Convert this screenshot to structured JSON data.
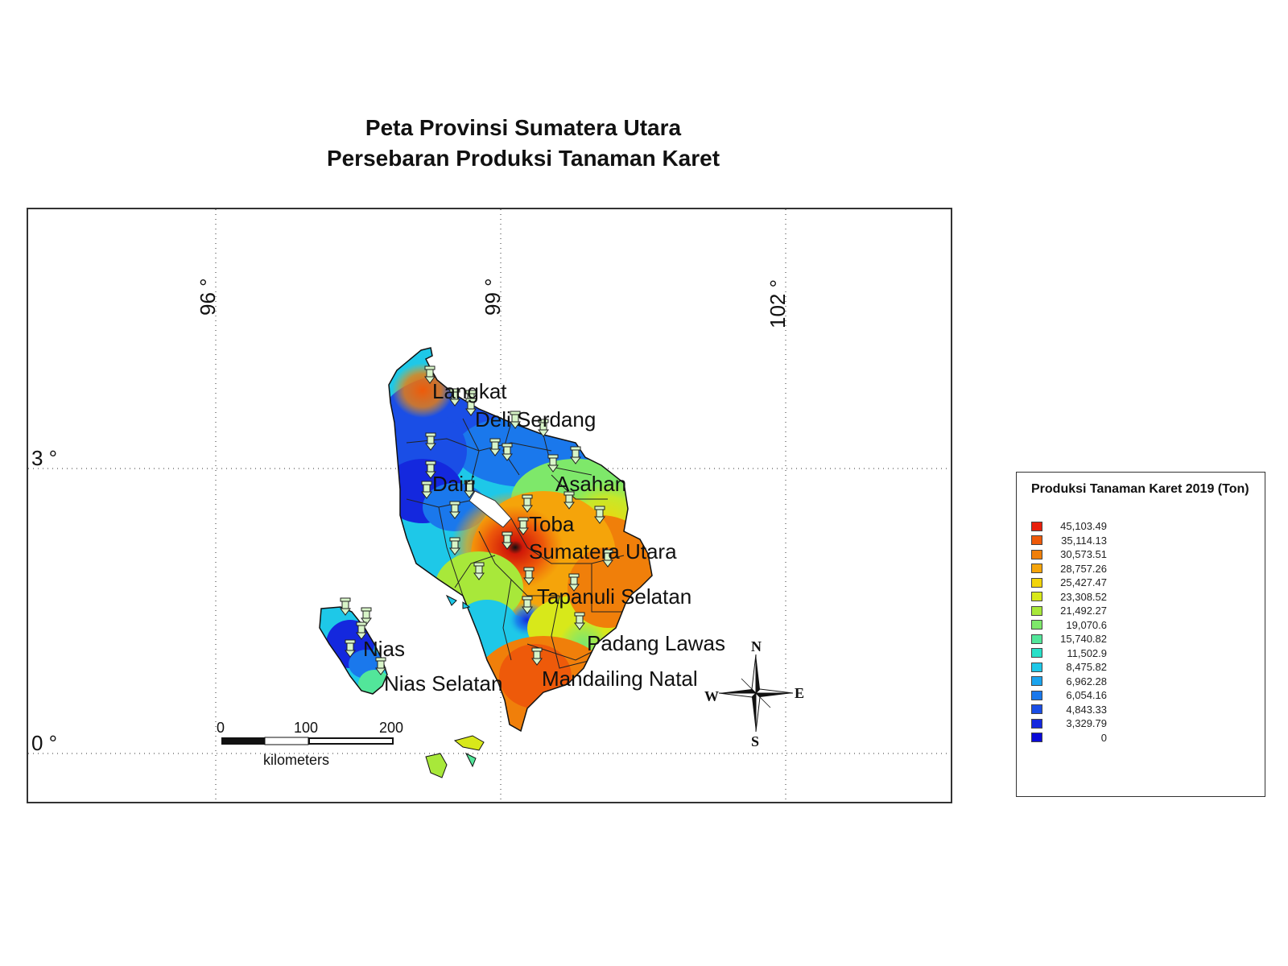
{
  "title": {
    "line1": "Peta Provinsi Sumatera Utara",
    "line2": "Persebaran Produksi Tanaman Karet"
  },
  "grid": {
    "lon_labels": [
      "96 °",
      "99 °",
      "102 °"
    ],
    "lat_labels": [
      "3 °",
      "0 °"
    ]
  },
  "regions": [
    "Langkat",
    "Deli Serdang",
    "Dairi",
    "Asahan",
    "Toba",
    "Sumatera Utara",
    "Tapanuli Selatan",
    "Padang Lawas",
    "Nias",
    "Nias Selatan",
    "Mandailing Natal"
  ],
  "scale_bar": {
    "ticks": [
      "0",
      "100",
      "200"
    ],
    "unit": "kilometers"
  },
  "compass": {
    "n": "N",
    "s": "S",
    "e": "E",
    "w": "W"
  },
  "legend": {
    "title": "Produksi Tanaman Karet 2019 (Ton)",
    "items": [
      {
        "value": "45,103.49",
        "color": "#e8200c"
      },
      {
        "value": "35,114.13",
        "color": "#ee5a0a"
      },
      {
        "value": "30,573.51",
        "color": "#f07f0a"
      },
      {
        "value": "28,757.26",
        "color": "#f5a40a"
      },
      {
        "value": "25,427.47",
        "color": "#f2d40a"
      },
      {
        "value": "23,308.52",
        "color": "#d8e81a"
      },
      {
        "value": "21,492.27",
        "color": "#a8e83a"
      },
      {
        "value": "19,070.6",
        "color": "#7ee86a"
      },
      {
        "value": "15,740.82",
        "color": "#52e69a"
      },
      {
        "value": "11,502.9",
        "color": "#28e0c8"
      },
      {
        "value": "8,475.82",
        "color": "#1ec8e8"
      },
      {
        "value": "6,962.28",
        "color": "#1aa4ee"
      },
      {
        "value": "6,054.16",
        "color": "#1a78ec"
      },
      {
        "value": "4,843.33",
        "color": "#1a4ee6"
      },
      {
        "value": "3,329.79",
        "color": "#1428de"
      },
      {
        "value": "0",
        "color": "#0a0ad8"
      }
    ]
  }
}
